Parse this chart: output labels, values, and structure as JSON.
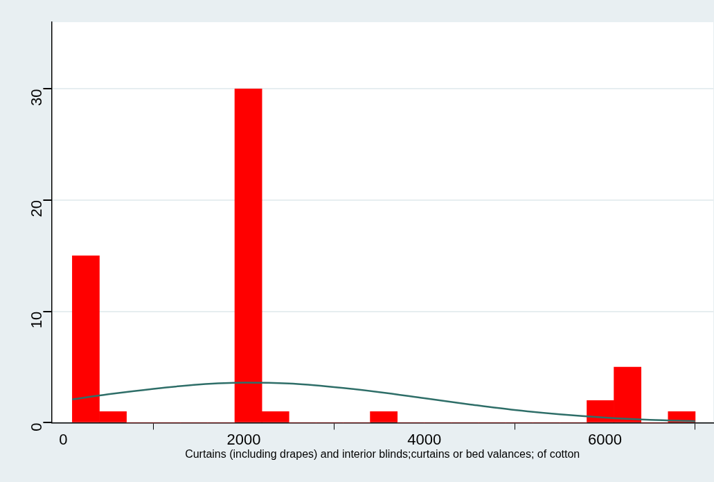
{
  "chart_data": {
    "type": "histogram",
    "xlabel": "Curtains (including drapes) and interior blinds;curtains or bed valances; of cotton",
    "bins": [
      100,
      400,
      700,
      1000,
      1300,
      1600,
      1900,
      2200,
      2500,
      2800,
      3100,
      3400,
      3700,
      4000,
      4300,
      4600,
      4900,
      5200,
      5500,
      5800,
      6100,
      6400,
      6700,
      7000
    ],
    "values": [
      15,
      1,
      0,
      0,
      0,
      0,
      30,
      1,
      0,
      0,
      0,
      1,
      0,
      0,
      0,
      0,
      0,
      0,
      0,
      2,
      5,
      0,
      1
    ],
    "color": "#ff0000",
    "series": [
      {
        "type": "line",
        "color": "#2e6e68",
        "x": [
          100,
          500,
          1000,
          1500,
          2000,
          2500,
          3000,
          3500,
          4000,
          4500,
          5000,
          5500,
          6000,
          6500,
          7000
        ],
        "values": [
          2.1,
          2.56,
          3.05,
          3.43,
          3.6,
          3.52,
          3.2,
          2.75,
          2.2,
          1.65,
          1.14,
          0.75,
          0.46,
          0.26,
          0.14
        ]
      }
    ],
    "xlim": [
      -130,
      7200
    ],
    "xticks": [
      0,
      2000,
      4000,
      6000
    ],
    "ylim": [
      0,
      36
    ],
    "yticks": [
      0,
      10,
      20,
      30
    ],
    "grid": "y",
    "legend": false,
    "marker": "none",
    "line_style": "solid"
  }
}
